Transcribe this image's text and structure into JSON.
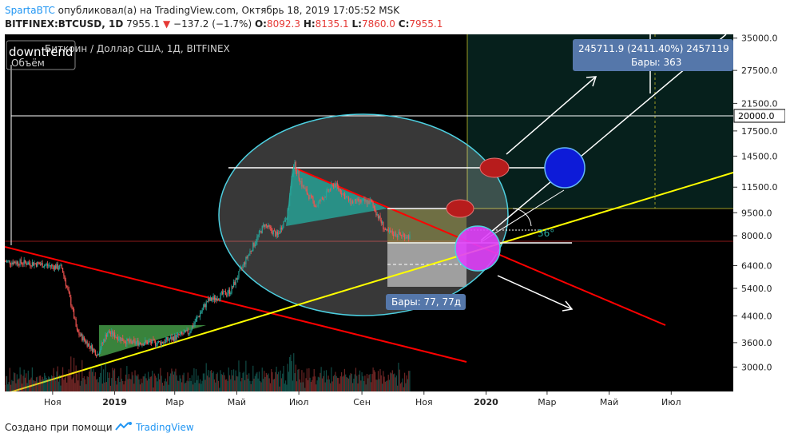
{
  "header": {
    "author": "SpartaBTC",
    "published_text": "опубликовал(а) на TradingView.com, Октябрь 18, 2019 17:05:52 MSK",
    "symbol": "BITFINEX:BTCUSD, 1D",
    "last": "7955.1",
    "change": "−137.2 (−1.7%)",
    "o_label": "O:",
    "o_value": "8092.3",
    "h_label": "H:",
    "h_value": "8135.1",
    "l_label": "L:",
    "l_value": "7860.0",
    "c_label": "C:",
    "c_value": "7955.1"
  },
  "chart": {
    "legend_title": "Биткоин / Доллар США, 1Д, BITFINEX",
    "downtrend_label": "downtrend",
    "volume_label": "Объём",
    "bars_label": "Бары: 77, 77д",
    "measure_label_line1": "245711.9 (2411.40%) 2457119",
    "measure_label_line2": "Бары: 363",
    "angle_label": "36°",
    "price_label_20000": "20000.0"
  },
  "footer": {
    "made_with": "Создано при помощи",
    "brand": "TradingView"
  },
  "colors": {
    "background": "#000000",
    "up_candle": "#26a69a",
    "down_candle": "#ef5350",
    "uptrend_line": "#ffff00",
    "downtrend_line": "#ff0000",
    "ellipse": "#4dd0e1",
    "triangle_fill": "#26a69a",
    "left_triangle_fill": "#4caf50"
  },
  "chart_data": {
    "type": "candlestick",
    "title": "Биткоин / Доллар США, 1Д, BITFINEX",
    "y_scale": "log",
    "ylim": [
      2500,
      36000
    ],
    "y_ticks": [
      35000,
      27500,
      21500,
      17500,
      14500,
      11500,
      9500,
      8000,
      6400,
      5400,
      4400,
      3600,
      3000
    ],
    "y_tick_labels": [
      "35000.0",
      "27500.0",
      "21500.0",
      "17500.0",
      "14500.0",
      "11500.0",
      "9500.0",
      "8000.0",
      "6400.0",
      "5400.0",
      "4400.0",
      "3600.0",
      "3000.0"
    ],
    "x_ticks": [
      "Ноя",
      "2019",
      "Мар",
      "Май",
      "Июл",
      "Сен",
      "Ноя",
      "2020",
      "Мар",
      "Май",
      "Июл"
    ],
    "x_range": [
      "2018-09-15",
      "2020-08-31"
    ],
    "price_path": [
      {
        "x": "2018-09-15",
        "y": 6600
      },
      {
        "x": "2018-10-15",
        "y": 6500
      },
      {
        "x": "2018-11-10",
        "y": 6300
      },
      {
        "x": "2018-11-20",
        "y": 4700
      },
      {
        "x": "2018-11-25",
        "y": 3900
      },
      {
        "x": "2018-12-15",
        "y": 3300
      },
      {
        "x": "2018-12-25",
        "y": 3900
      },
      {
        "x": "2019-01-15",
        "y": 3600
      },
      {
        "x": "2019-02-15",
        "y": 3600
      },
      {
        "x": "2019-03-15",
        "y": 3900
      },
      {
        "x": "2019-04-02",
        "y": 4900
      },
      {
        "x": "2019-04-25",
        "y": 5300
      },
      {
        "x": "2019-05-12",
        "y": 6900
      },
      {
        "x": "2019-05-28",
        "y": 8700
      },
      {
        "x": "2019-06-10",
        "y": 8000
      },
      {
        "x": "2019-06-20",
        "y": 9500
      },
      {
        "x": "2019-06-26",
        "y": 13800
      },
      {
        "x": "2019-07-05",
        "y": 11500
      },
      {
        "x": "2019-07-18",
        "y": 10000
      },
      {
        "x": "2019-08-05",
        "y": 11800
      },
      {
        "x": "2019-08-20",
        "y": 10300
      },
      {
        "x": "2019-09-10",
        "y": 10300
      },
      {
        "x": "2019-09-25",
        "y": 8200
      },
      {
        "x": "2019-10-18",
        "y": 7955
      }
    ],
    "volume_label": "Объём",
    "annotations": [
      "downtrend",
      "Бары: 77, 77д",
      "245711.9 (2411.40%) 2457119",
      "Бары: 363",
      "36°",
      "20000.0"
    ]
  }
}
